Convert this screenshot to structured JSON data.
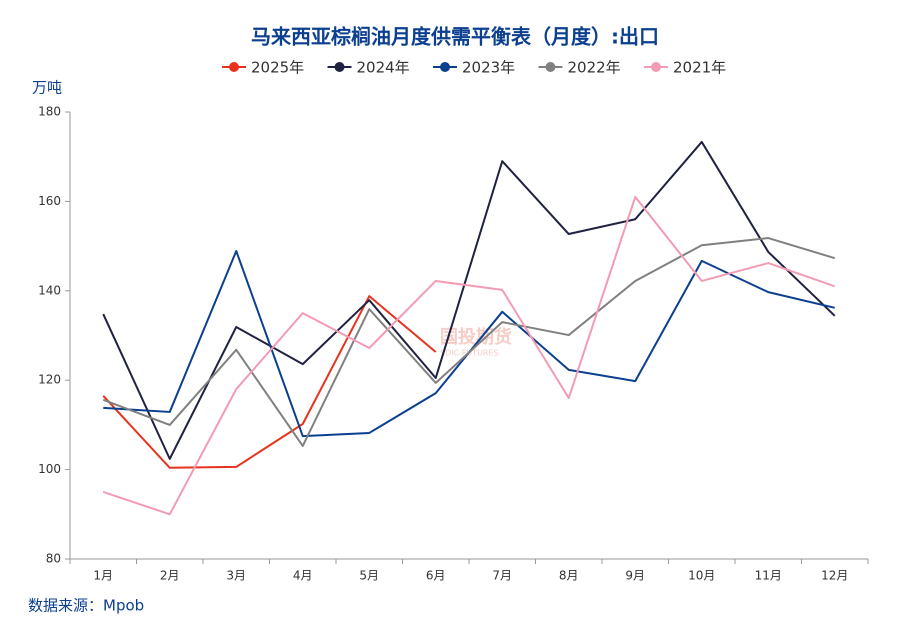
{
  "chart_data": {
    "type": "line",
    "title": "马来西亚棕榈油月度供需平衡表（月度）:出口",
    "y_axis_label": "万吨",
    "source": "数据来源：Mpob",
    "watermark": "国投期货",
    "watermark_sub": "SDIC FUTURES",
    "categories": [
      "1月",
      "2月",
      "3月",
      "4月",
      "5月",
      "6月",
      "7月",
      "8月",
      "9月",
      "10月",
      "11月",
      "12月"
    ],
    "series": [
      {
        "name": "2025年",
        "color": "#e8321e",
        "values": [
          116.5,
          100.4,
          100.6,
          110.2,
          138.8,
          126.3,
          null,
          null,
          null,
          null,
          null,
          null
        ]
      },
      {
        "name": "2024年",
        "color": "#1f2240",
        "values": [
          134.8,
          102.4,
          131.9,
          123.6,
          137.9,
          120.5,
          169,
          152.7,
          156,
          173.3,
          148.7,
          134.4
        ]
      },
      {
        "name": "2023年",
        "color": "#0b3f8f",
        "values": [
          113.8,
          112.9,
          148.9,
          107.5,
          108.2,
          117.1,
          135.3,
          122.3,
          119.8,
          146.7,
          139.7,
          136.2
        ]
      },
      {
        "name": "2022年",
        "color": "#808080",
        "values": [
          115.6,
          110,
          126.8,
          105.3,
          135.9,
          119.4,
          133,
          130.1,
          142.2,
          150.2,
          151.8,
          147.3
        ]
      },
      {
        "name": "2021年",
        "color": "#f29bb3",
        "values": [
          95,
          90,
          118,
          135,
          127.2,
          142.2,
          140.2,
          116,
          161,
          142.2,
          146.2,
          141
        ]
      }
    ],
    "ylim": [
      80,
      180
    ],
    "yticks": [
      80,
      100,
      120,
      140,
      160,
      180
    ],
    "legend": "top"
  }
}
